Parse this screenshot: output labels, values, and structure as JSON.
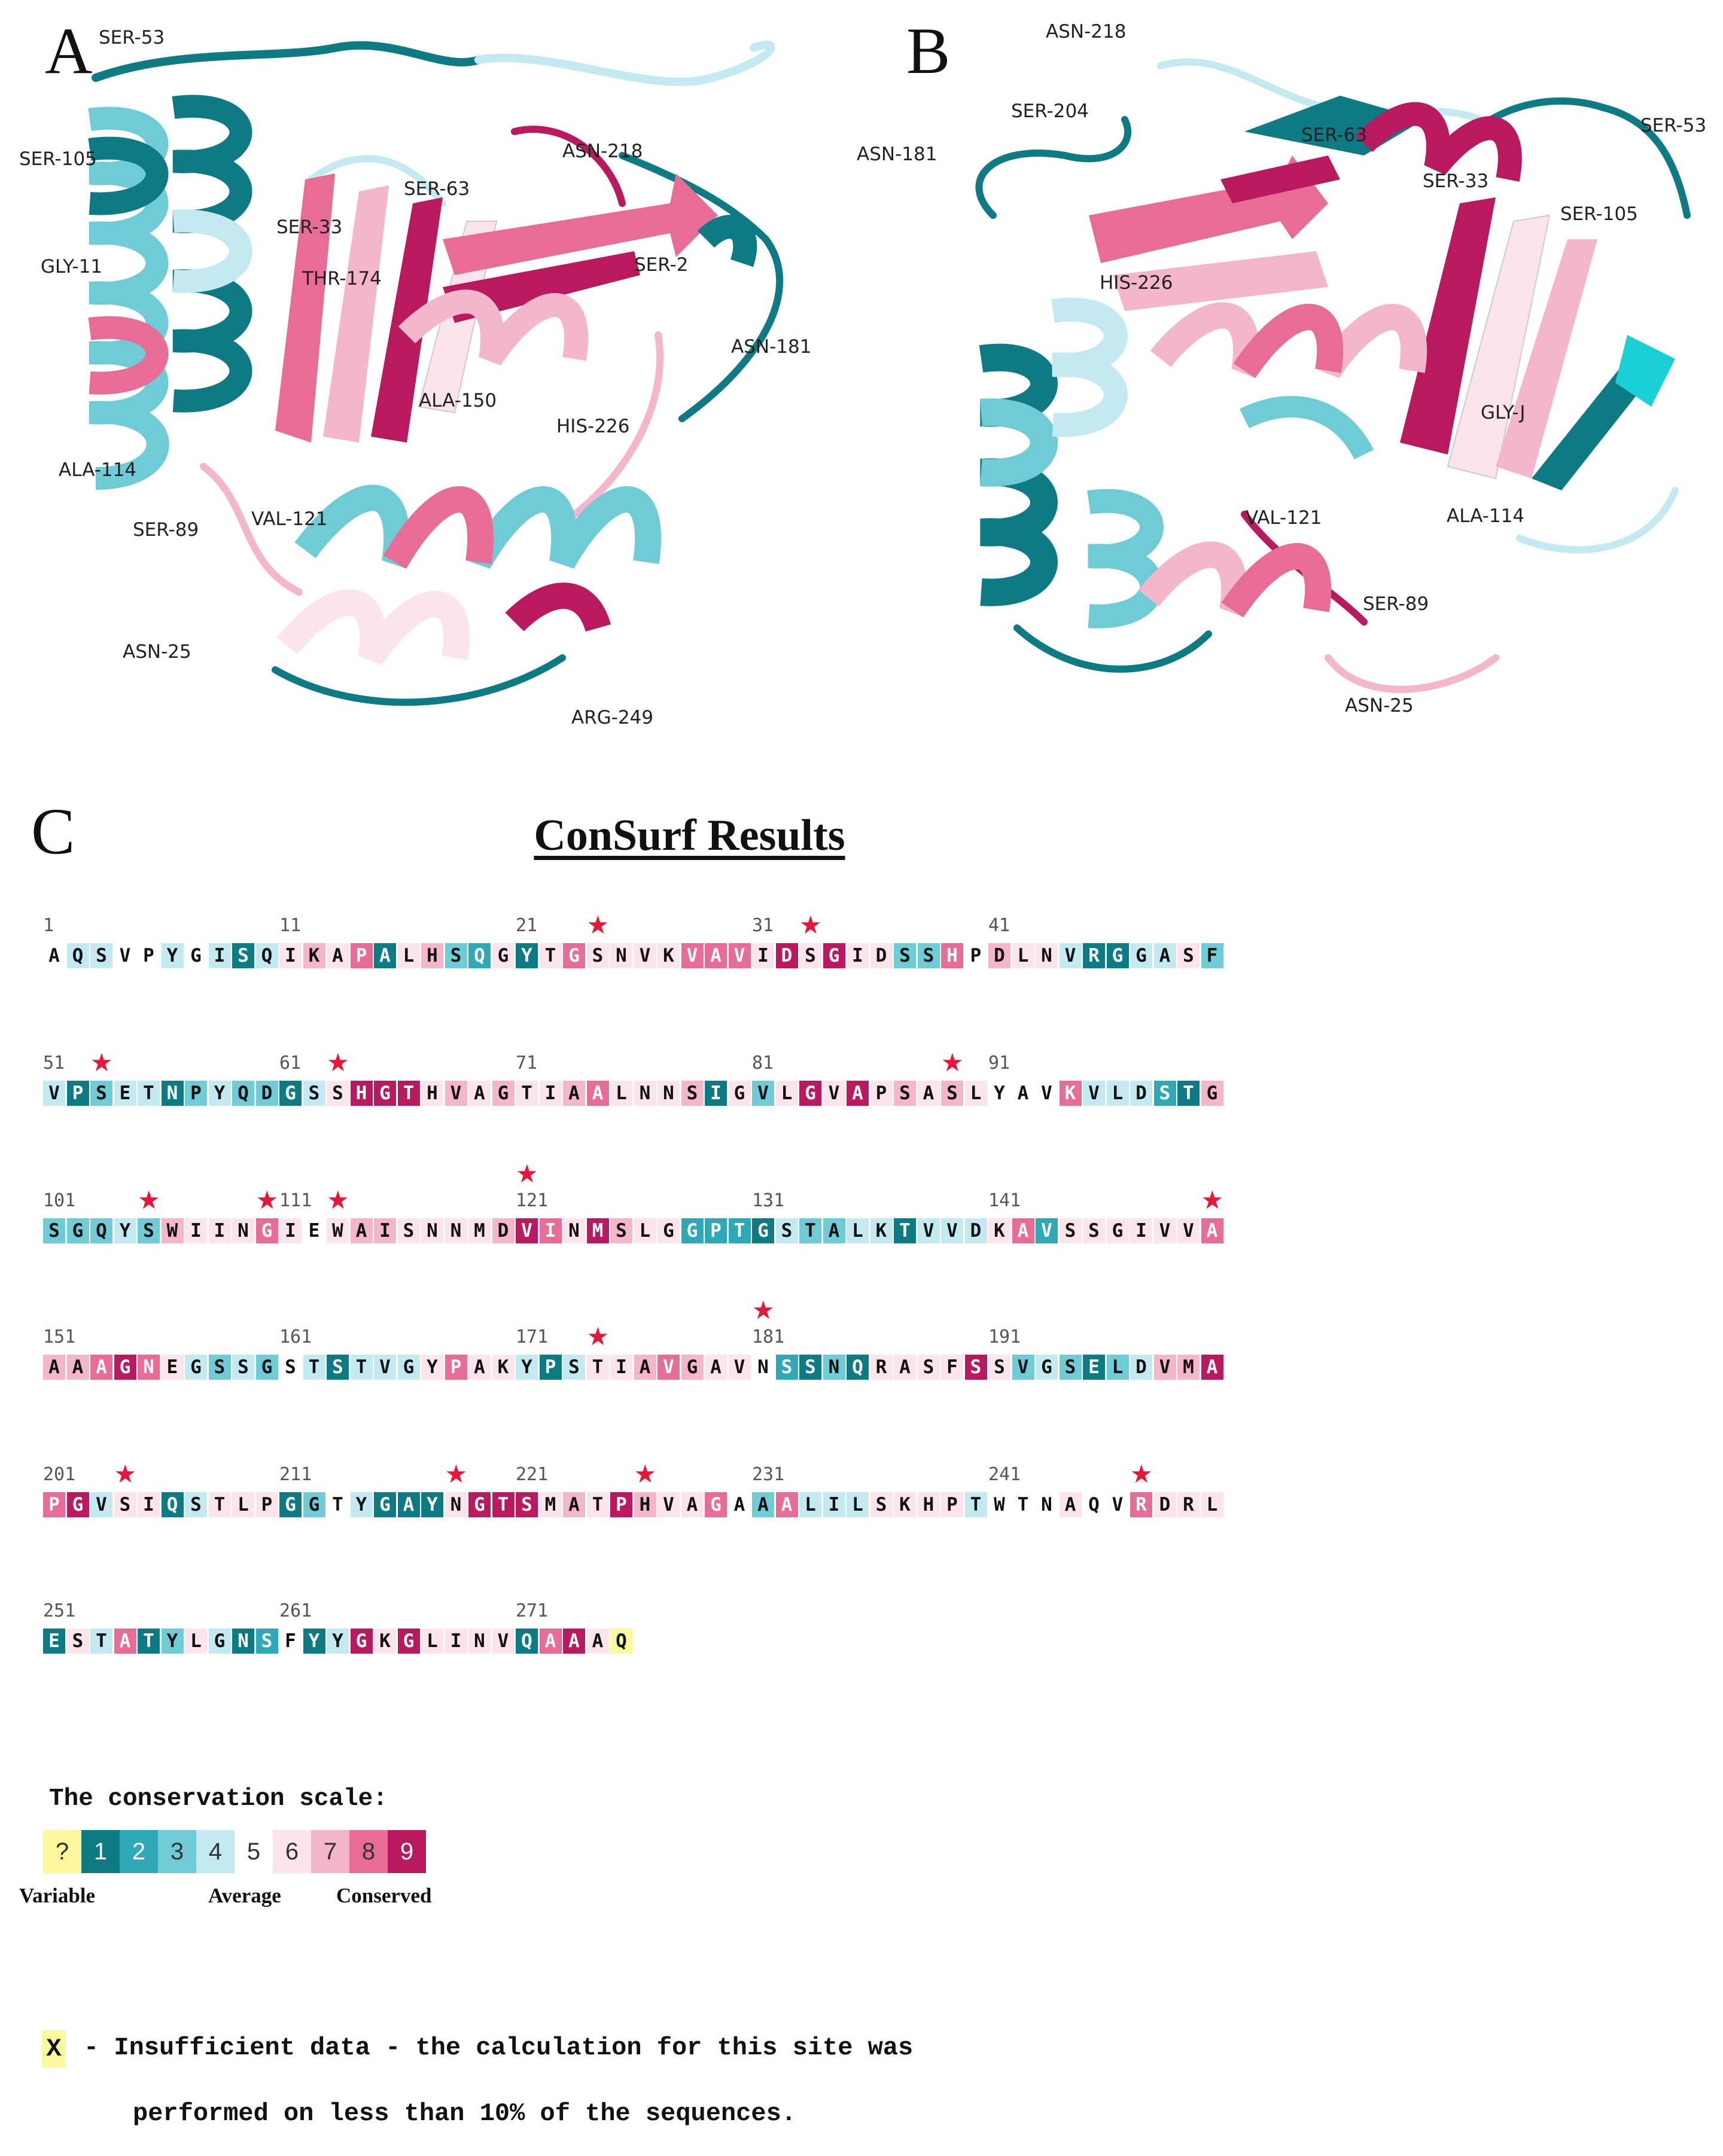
{
  "panels": {
    "a_letter": "A",
    "b_letter": "B",
    "c_letter": "C"
  },
  "panel_a_labels": [
    "SER-53",
    "SER-105",
    "SER-33",
    "SER-63",
    "ASN-218",
    "GLY-11",
    "THR-174",
    "SER-2",
    "ASN-181",
    "ALA-150",
    "HIS-226",
    "ALA-114",
    "SER-89",
    "VAL-121",
    "ASN-25",
    "ARG-249"
  ],
  "panel_b_labels": [
    "ASN-218",
    "SER-204",
    "ASN-181",
    "SER-63",
    "SER-53",
    "SER-33",
    "SER-105",
    "HIS-226",
    "GLY-J",
    "ALA-114",
    "VAL-121",
    "SER-89",
    "ASN-25"
  ],
  "colors": {
    "g1": "#0d7a84",
    "g2": "#2ea9b5",
    "g3": "#6fcbd6",
    "g4": "#c3eaf0",
    "g5": "#ffffff",
    "g6": "#fbe4ec",
    "g7": "#f3b6ca",
    "g8": "#e76d97",
    "g9": "#b8195f",
    "insufficient": "#fbf99b",
    "star": "#e8173a"
  },
  "consurf": {
    "title": "ConSurf Results",
    "blocks": [
      {
        "start": "1",
        "seq": "AQSVPYGISQ",
        "grades": [
          5,
          4,
          4,
          5,
          5,
          4,
          5,
          4,
          1,
          4
        ],
        "stars": []
      },
      {
        "start": "11",
        "seq": "IKAPALHSQG",
        "grades": [
          6,
          7,
          6,
          8,
          1,
          6,
          7,
          3,
          2,
          6
        ],
        "stars": []
      },
      {
        "start": "21",
        "seq": "YTGSNVKVAV",
        "grades": [
          1,
          6,
          8,
          6,
          6,
          6,
          6,
          8,
          8,
          8
        ],
        "stars": [
          4
        ]
      },
      {
        "start": "31",
        "seq": "IDSGIDSSHP",
        "grades": [
          6,
          9,
          6,
          9,
          6,
          6,
          3,
          3,
          8,
          5
        ],
        "stars": [
          3
        ]
      },
      {
        "start": "41",
        "seq": "DLNVRGGASF",
        "grades": [
          7,
          6,
          6,
          4,
          1,
          1,
          4,
          4,
          6,
          3
        ],
        "stars": []
      },
      {
        "start": "51",
        "seq": "VPSETNPYQD",
        "grades": [
          4,
          1,
          3,
          4,
          4,
          1,
          3,
          4,
          3,
          3
        ],
        "stars": [
          3
        ]
      },
      {
        "start": "61",
        "seq": "GSSHGTHVAG",
        "grades": [
          1,
          4,
          6,
          9,
          9,
          9,
          6,
          7,
          6,
          7
        ],
        "stars": [
          3
        ]
      },
      {
        "start": "71",
        "seq": "TIAALNNSIG",
        "grades": [
          6,
          6,
          7,
          8,
          6,
          6,
          6,
          7,
          1,
          6
        ],
        "stars": []
      },
      {
        "start": "81",
        "seq": "VLGVAPSASL",
        "grades": [
          3,
          6,
          9,
          6,
          9,
          6,
          7,
          6,
          7,
          6
        ],
        "stars": [
          9
        ]
      },
      {
        "start": "91",
        "seq": "YAVKVLDSTG",
        "grades": [
          5,
          5,
          5,
          8,
          4,
          4,
          4,
          2,
          1,
          7
        ],
        "stars": []
      },
      {
        "start": "101",
        "seq": "SGQYSWIING",
        "grades": [
          3,
          3,
          3,
          4,
          3,
          7,
          6,
          6,
          6,
          8
        ],
        "stars": [
          5,
          10
        ]
      },
      {
        "start": "111",
        "seq": "IEWAISNNMD",
        "grades": [
          6,
          5,
          6,
          7,
          7,
          6,
          6,
          6,
          6,
          7
        ],
        "stars": [
          3
        ]
      },
      {
        "start": "121",
        "seq": "VINMSLGGPT",
        "grades": [
          9,
          8,
          6,
          9,
          7,
          6,
          6,
          2,
          2,
          2
        ],
        "stars": [
          1
        ]
      },
      {
        "start": "131",
        "seq": "GSTALKTVVD",
        "grades": [
          1,
          4,
          3,
          3,
          4,
          4,
          1,
          4,
          4,
          4
        ],
        "stars": []
      },
      {
        "start": "141",
        "seq": "KAVSSGIVVA",
        "grades": [
          6,
          8,
          2,
          6,
          6,
          6,
          6,
          6,
          6,
          8
        ],
        "stars": [
          10
        ]
      },
      {
        "start": "151",
        "seq": "AAAGNEGSSG",
        "grades": [
          7,
          7,
          8,
          9,
          8,
          6,
          4,
          3,
          4,
          3
        ],
        "stars": []
      },
      {
        "start": "161",
        "seq": "STSTVGYPAK",
        "grades": [
          5,
          4,
          1,
          4,
          4,
          4,
          6,
          8,
          6,
          6
        ],
        "stars": []
      },
      {
        "start": "171",
        "seq": "YPSTIAVGAV",
        "grades": [
          4,
          1,
          4,
          6,
          6,
          7,
          8,
          7,
          6,
          6
        ],
        "stars": [
          4
        ]
      },
      {
        "start": "181",
        "seq": "NSSNQRASFS",
        "grades": [
          5,
          2,
          1,
          3,
          1,
          6,
          6,
          6,
          6,
          9
        ],
        "stars": [
          1
        ]
      },
      {
        "start": "191",
        "seq": "SVGSELDVMA",
        "grades": [
          6,
          3,
          4,
          3,
          1,
          3,
          4,
          7,
          7,
          9
        ],
        "stars": []
      },
      {
        "start": "201",
        "seq": "PGVSIQSTLP",
        "grades": [
          8,
          9,
          4,
          6,
          6,
          1,
          4,
          6,
          6,
          6
        ],
        "stars": [
          4
        ]
      },
      {
        "start": "211",
        "seq": "GGTYGAYNGT",
        "grades": [
          1,
          3,
          5,
          4,
          1,
          1,
          1,
          6,
          9,
          9
        ],
        "stars": [
          8
        ]
      },
      {
        "start": "221",
        "seq": "SMATPHVAGA",
        "grades": [
          9,
          6,
          7,
          6,
          9,
          7,
          6,
          6,
          8,
          5
        ],
        "stars": [
          6
        ]
      },
      {
        "start": "231",
        "seq": "AALILSKHPT",
        "grades": [
          3,
          8,
          4,
          4,
          4,
          6,
          6,
          6,
          6,
          4
        ],
        "stars": []
      },
      {
        "start": "241",
        "seq": "WTNAQVRDRL",
        "grades": [
          5,
          5,
          5,
          6,
          5,
          5,
          8,
          6,
          6,
          6
        ],
        "stars": [
          7
        ]
      },
      {
        "start": "251",
        "seq": "ESTATYLGNS",
        "grades": [
          1,
          6,
          4,
          8,
          1,
          3,
          6,
          4,
          1,
          2
        ],
        "stars": []
      },
      {
        "start": "261",
        "seq": "FYYGKGLINV",
        "grades": [
          5,
          1,
          4,
          9,
          6,
          9,
          6,
          6,
          6,
          6
        ],
        "stars": []
      },
      {
        "start": "271",
        "seq": "QAAAQ",
        "grades": [
          1,
          8,
          9,
          6,
          0
        ],
        "stars": []
      }
    ]
  },
  "scale": {
    "title": "The conservation scale:",
    "cells": [
      "?",
      "1",
      "2",
      "3",
      "4",
      "5",
      "6",
      "7",
      "8",
      "9"
    ],
    "label_variable": "Variable",
    "label_average": "Average",
    "label_conserved": "Conserved"
  },
  "note": {
    "x_label": "X",
    "line1": "- Insufficient data - the calculation for this site was",
    "line2": "performed on less than 10% of the sequences."
  }
}
